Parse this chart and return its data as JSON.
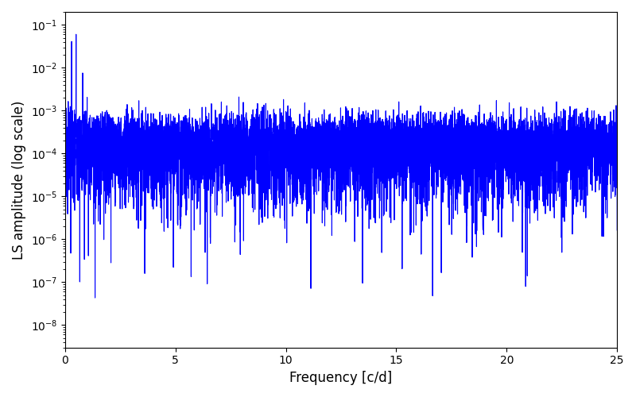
{
  "title": "",
  "xlabel": "Frequency [c/d]",
  "ylabel": "LS amplitude (log scale)",
  "line_color": "#0000ff",
  "line_width": 0.8,
  "xlim": [
    0,
    25
  ],
  "ylim": [
    3e-09,
    0.2
  ],
  "freq_max": 25.0,
  "n_freq": 8000,
  "seed": 7,
  "n_obs": 2000,
  "t_span": 300.0,
  "background_color": "#ffffff",
  "figsize": [
    8.0,
    5.0
  ],
  "dpi": 100
}
